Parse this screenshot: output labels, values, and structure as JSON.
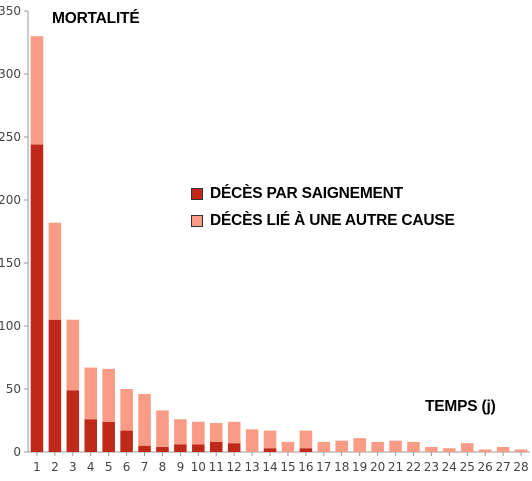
{
  "chart_data": {
    "type": "bar",
    "stacked": true,
    "title": "MORTALITÉ",
    "xlabel": "TEMPS (j)",
    "ylabel": "",
    "ylim": [
      0,
      350
    ],
    "yticks": [
      0,
      50,
      100,
      150,
      200,
      250,
      300,
      350
    ],
    "categories": [
      "1",
      "2",
      "3",
      "4",
      "5",
      "6",
      "7",
      "8",
      "9",
      "10",
      "11",
      "12",
      "13",
      "14",
      "15",
      "16",
      "17",
      "18",
      "19",
      "20",
      "21",
      "22",
      "23",
      "24",
      "25",
      "26",
      "27",
      "28"
    ],
    "series": [
      {
        "name": "DÉCÈS PAR SAIGNEMENT",
        "color": "#c0281a",
        "values": [
          244,
          105,
          49,
          26,
          24,
          17,
          5,
          4,
          6,
          6,
          8,
          7,
          0,
          3,
          0,
          3,
          0,
          0,
          0,
          0,
          0,
          0,
          0,
          0,
          0,
          0,
          0,
          0
        ]
      },
      {
        "name": "DÉCÈS LIÉ À UNE AUTRE CAUSE",
        "color": "#fa9c85",
        "values": [
          86,
          77,
          56,
          41,
          42,
          33,
          41,
          29,
          20,
          18,
          15,
          17,
          18,
          14,
          8,
          14,
          8,
          9,
          11,
          8,
          9,
          8,
          4,
          3,
          7,
          2,
          4,
          2
        ]
      }
    ],
    "grid": false,
    "legend_position": "center"
  }
}
